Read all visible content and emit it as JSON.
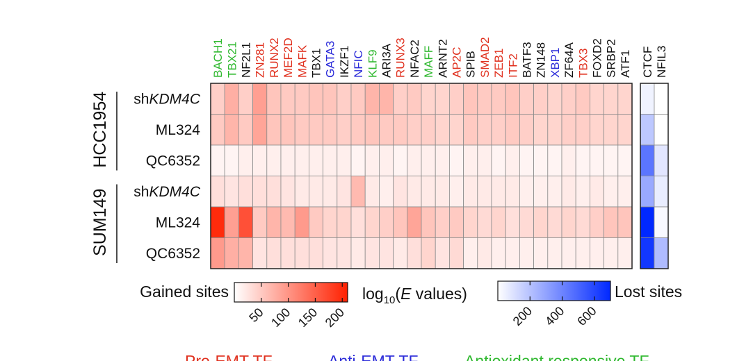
{
  "chart_data": {
    "type": "heatmap",
    "columns": [
      {
        "name": "BACH1",
        "category": "antioxidant"
      },
      {
        "name": "TBX21",
        "category": "antioxidant"
      },
      {
        "name": "NF2L1",
        "category": "other"
      },
      {
        "name": "ZN281",
        "category": "pro"
      },
      {
        "name": "RUNX2",
        "category": "pro"
      },
      {
        "name": "MEF2D",
        "category": "pro"
      },
      {
        "name": "MAFK",
        "category": "pro"
      },
      {
        "name": "TBX1",
        "category": "other"
      },
      {
        "name": "GATA3",
        "category": "anti"
      },
      {
        "name": "IKZF1",
        "category": "other"
      },
      {
        "name": "NFIC",
        "category": "anti"
      },
      {
        "name": "KLF9",
        "category": "antioxidant"
      },
      {
        "name": "ARI3A",
        "category": "other"
      },
      {
        "name": "RUNX3",
        "category": "pro"
      },
      {
        "name": "NFAC2",
        "category": "other"
      },
      {
        "name": "MAFF",
        "category": "antioxidant"
      },
      {
        "name": "ARNT2",
        "category": "other"
      },
      {
        "name": "AP2C",
        "category": "pro"
      },
      {
        "name": "SPIB",
        "category": "other"
      },
      {
        "name": "SMAD2",
        "category": "pro"
      },
      {
        "name": "ZEB1",
        "category": "pro"
      },
      {
        "name": "ITF2",
        "category": "pro"
      },
      {
        "name": "BATF3",
        "category": "other"
      },
      {
        "name": "ZN148",
        "category": "other"
      },
      {
        "name": "XBP1",
        "category": "anti"
      },
      {
        "name": "ZF64A",
        "category": "other"
      },
      {
        "name": "TBX3",
        "category": "pro"
      },
      {
        "name": "FOXD2",
        "category": "other"
      },
      {
        "name": "SRBP2",
        "category": "other"
      },
      {
        "name": "ATF1",
        "category": "other"
      }
    ],
    "lost_columns": [
      {
        "name": "CTCF",
        "category": "other"
      },
      {
        "name": "NFIL3",
        "category": "other"
      }
    ],
    "category_colors": {
      "pro": "#e0301e",
      "anti": "#2b2bd9",
      "antioxidant": "#2eb82e",
      "other": "#111111"
    },
    "groups": [
      {
        "name": "HCC1954",
        "rows": [
          {
            "prefix": "sh",
            "italic": "KDM4C",
            "suffix": ""
          },
          {
            "prefix": "ML324",
            "italic": "",
            "suffix": ""
          },
          {
            "prefix": "QC6352",
            "italic": "",
            "suffix": ""
          }
        ]
      },
      {
        "name": "SUM149",
        "rows": [
          {
            "prefix": "sh",
            "italic": "KDM4C",
            "suffix": ""
          },
          {
            "prefix": "ML324",
            "italic": "",
            "suffix": ""
          },
          {
            "prefix": "QC6352",
            "italic": "",
            "suffix": ""
          }
        ]
      }
    ],
    "gained_values": [
      [
        45,
        75,
        45,
        90,
        55,
        50,
        50,
        55,
        55,
        45,
        50,
        70,
        70,
        45,
        50,
        40,
        40,
        45,
        55,
        50,
        50,
        55,
        45,
        45,
        40,
        45,
        50,
        40,
        40,
        40
      ],
      [
        50,
        70,
        50,
        85,
        55,
        55,
        50,
        50,
        50,
        45,
        50,
        55,
        50,
        50,
        45,
        45,
        40,
        40,
        50,
        45,
        45,
        50,
        45,
        40,
        40,
        45,
        45,
        40,
        40,
        40
      ],
      [
        10,
        10,
        15,
        15,
        15,
        15,
        15,
        15,
        15,
        15,
        10,
        15,
        15,
        10,
        15,
        15,
        15,
        10,
        15,
        15,
        10,
        15,
        10,
        10,
        10,
        15,
        10,
        10,
        10,
        10
      ],
      [
        30,
        25,
        30,
        30,
        30,
        25,
        20,
        20,
        20,
        25,
        65,
        20,
        15,
        25,
        20,
        20,
        20,
        15,
        20,
        20,
        20,
        20,
        15,
        15,
        15,
        20,
        15,
        20,
        15,
        15
      ],
      [
        200,
        90,
        165,
        50,
        70,
        65,
        95,
        50,
        40,
        40,
        30,
        40,
        45,
        55,
        85,
        55,
        45,
        50,
        40,
        35,
        40,
        30,
        35,
        40,
        35,
        40,
        35,
        45,
        55,
        55
      ],
      [
        95,
        75,
        70,
        25,
        30,
        30,
        30,
        30,
        25,
        25,
        20,
        25,
        25,
        20,
        30,
        40,
        25,
        35,
        15,
        20,
        15,
        15,
        15,
        15,
        15,
        15,
        15,
        15,
        15,
        15
      ]
    ],
    "lost_values": [
      [
        40,
        0
      ],
      [
        180,
        0
      ],
      [
        450,
        80
      ],
      [
        280,
        60
      ],
      [
        700,
        20
      ],
      [
        650,
        220
      ]
    ],
    "legend": {
      "gained_label": "Gained sites",
      "lost_label": "Lost sites",
      "center_label": "log10(E values)",
      "gained_ticks": [
        "50",
        "100",
        "150",
        "200"
      ],
      "lost_ticks": [
        "200",
        "400",
        "600"
      ],
      "gained_range": [
        0,
        210
      ],
      "lost_range": [
        0,
        700
      ]
    },
    "footer": [
      {
        "text": "Pro-EMT TF",
        "category": "pro"
      },
      {
        "text": "Anti-EMT TF",
        "category": "anti"
      },
      {
        "text": "Antioxidant responsive TF",
        "category": "antioxidant"
      }
    ]
  }
}
